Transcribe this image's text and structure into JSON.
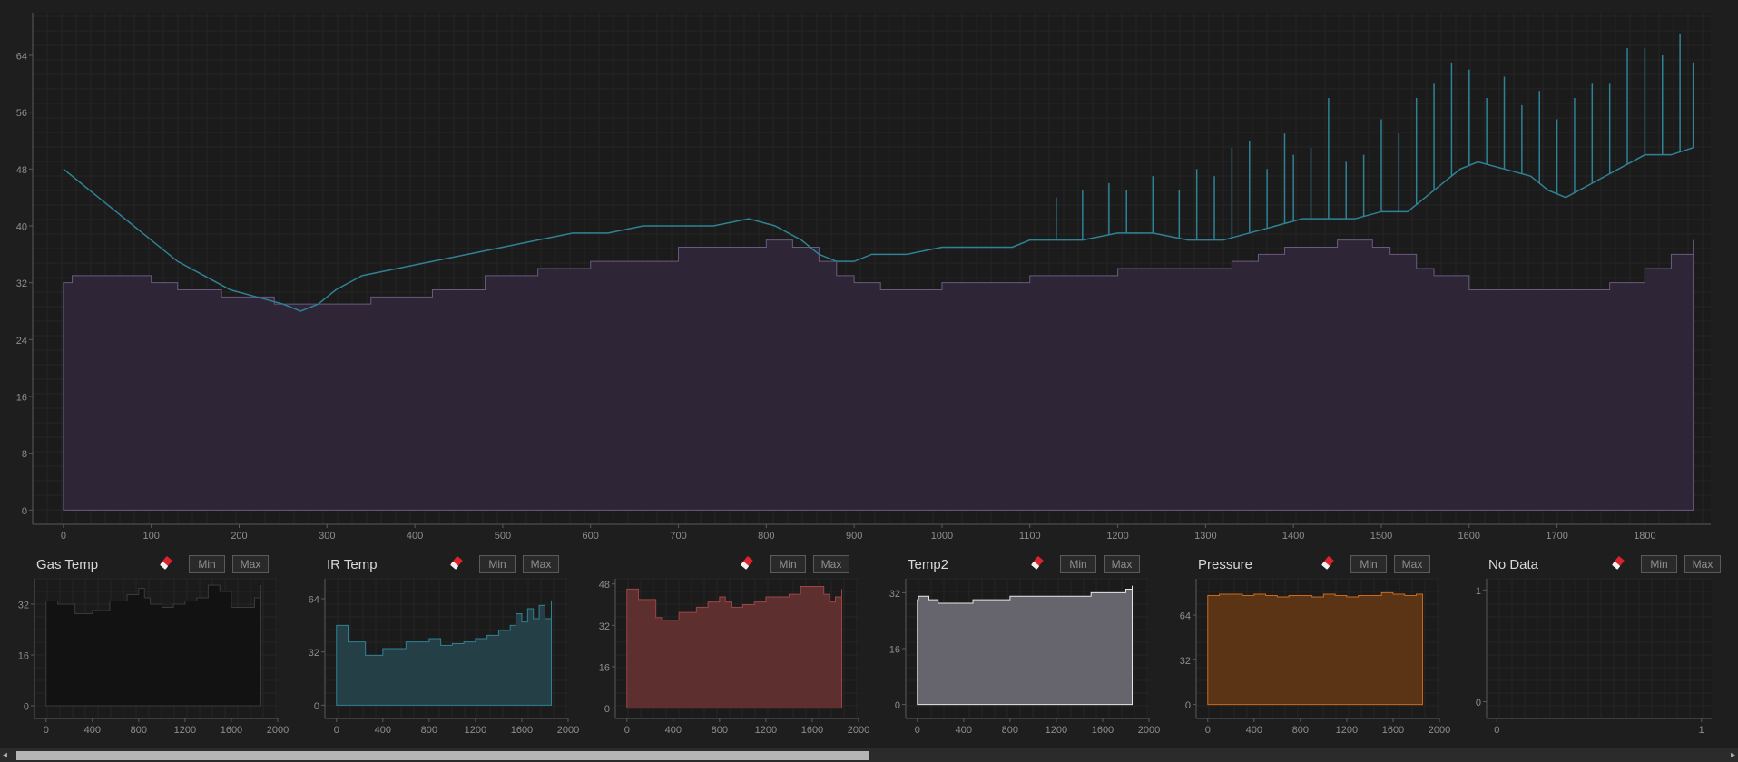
{
  "chart_data": [
    {
      "type": "area",
      "title": "",
      "xlabel": "",
      "ylabel": "",
      "xlim": [
        -35,
        1875
      ],
      "ylim": [
        -2,
        70
      ],
      "xticks": [
        0,
        100,
        200,
        300,
        400,
        500,
        600,
        700,
        800,
        900,
        1000,
        1100,
        1200,
        1300,
        1400,
        1500,
        1600,
        1700,
        1800
      ],
      "yticks": [
        0,
        8,
        16,
        24,
        32,
        40,
        48,
        56,
        64
      ],
      "grid": true,
      "series": [
        {
          "kind": "area",
          "color": "#6a5a80",
          "fill": "#2e2637",
          "x": [
            0,
            10,
            60,
            100,
            130,
            180,
            240,
            300,
            350,
            420,
            480,
            540,
            600,
            640,
            700,
            730,
            760,
            800,
            830,
            860,
            880,
            900,
            930,
            960,
            1000,
            1050,
            1100,
            1150,
            1200,
            1240,
            1270,
            1300,
            1330,
            1360,
            1390,
            1450,
            1490,
            1510,
            1540,
            1560,
            1600,
            1640,
            1690,
            1730,
            1760,
            1800,
            1830,
            1855
          ],
          "y": [
            32,
            33,
            33,
            32,
            31,
            30,
            29,
            29,
            30,
            31,
            33,
            34,
            35,
            35,
            37,
            37,
            37,
            38,
            37,
            35,
            33,
            32,
            31,
            31,
            32,
            32,
            33,
            33,
            34,
            34,
            34,
            34,
            35,
            36,
            37,
            38,
            37,
            36,
            34,
            33,
            31,
            31,
            31,
            31,
            32,
            34,
            36,
            38
          ]
        },
        {
          "kind": "line",
          "color": "#2f8294",
          "x": [
            0,
            20,
            40,
            60,
            80,
            100,
            130,
            160,
            190,
            220,
            250,
            270,
            290,
            310,
            340,
            380,
            420,
            460,
            500,
            540,
            580,
            620,
            660,
            700,
            740,
            780,
            810,
            840,
            860,
            880,
            900,
            920,
            960,
            1000,
            1040,
            1080,
            1100,
            1130,
            1160,
            1200,
            1240,
            1280,
            1320,
            1350,
            1380,
            1410,
            1440,
            1470,
            1500,
            1530,
            1560,
            1590,
            1610,
            1640,
            1670,
            1690,
            1710,
            1740,
            1770,
            1800,
            1830,
            1855
          ],
          "y": [
            48,
            46,
            44,
            42,
            40,
            38,
            35,
            33,
            31,
            30,
            29,
            28,
            29,
            31,
            33,
            34,
            35,
            36,
            37,
            38,
            39,
            39,
            40,
            40,
            40,
            41,
            40,
            38,
            36,
            35,
            35,
            36,
            36,
            37,
            37,
            37,
            38,
            38,
            38,
            39,
            39,
            38,
            38,
            39,
            40,
            41,
            41,
            41,
            42,
            42,
            45,
            48,
            49,
            48,
            47,
            45,
            44,
            46,
            48,
            50,
            50,
            51
          ]
        },
        {
          "kind": "spikes",
          "color": "#2f8294",
          "x": [
            1130,
            1160,
            1190,
            1210,
            1240,
            1270,
            1290,
            1310,
            1330,
            1350,
            1370,
            1390,
            1400,
            1420,
            1440,
            1460,
            1480,
            1500,
            1520,
            1540,
            1560,
            1580,
            1600,
            1620,
            1640,
            1660,
            1680,
            1700,
            1720,
            1740,
            1760,
            1780,
            1800,
            1820,
            1840,
            1855
          ],
          "y": [
            44,
            45,
            46,
            45,
            47,
            45,
            48,
            47,
            51,
            52,
            48,
            53,
            50,
            51,
            58,
            49,
            50,
            55,
            53,
            58,
            60,
            63,
            62,
            58,
            61,
            57,
            59,
            55,
            58,
            60,
            60,
            65,
            65,
            64,
            67,
            63
          ]
        }
      ]
    },
    {
      "type": "area",
      "title": "Gas Temp",
      "xlim": [
        -100,
        2000
      ],
      "ylim": [
        -4,
        40
      ],
      "xticks": [
        0,
        400,
        800,
        1200,
        1600,
        2000
      ],
      "yticks": [
        0,
        16,
        32
      ],
      "series": [
        {
          "color": "#3a3a3a",
          "fill": "#121212",
          "x": [
            0,
            100,
            250,
            400,
            550,
            700,
            800,
            850,
            900,
            1000,
            1100,
            1200,
            1300,
            1400,
            1500,
            1600,
            1700,
            1800,
            1855
          ],
          "y": [
            33,
            32,
            29,
            30,
            33,
            35,
            37,
            34,
            32,
            31,
            32,
            33,
            34,
            38,
            36,
            31,
            31,
            34,
            38
          ]
        }
      ]
    },
    {
      "type": "area",
      "title": "IR Temp",
      "xlim": [
        -100,
        2000
      ],
      "ylim": [
        -8,
        76
      ],
      "xticks": [
        0,
        400,
        800,
        1200,
        1600,
        2000
      ],
      "yticks": [
        0,
        32,
        64
      ],
      "series": [
        {
          "color": "#2f8294",
          "fill": "#243f46",
          "x": [
            0,
            100,
            250,
            300,
            400,
            600,
            800,
            900,
            1000,
            1100,
            1200,
            1300,
            1400,
            1500,
            1550,
            1600,
            1650,
            1700,
            1750,
            1800,
            1855
          ],
          "y": [
            48,
            38,
            30,
            30,
            34,
            38,
            40,
            36,
            37,
            38,
            40,
            42,
            45,
            48,
            55,
            50,
            58,
            52,
            60,
            52,
            63
          ]
        }
      ]
    },
    {
      "type": "area",
      "title": "",
      "xlim": [
        -100,
        2000
      ],
      "ylim": [
        -4,
        50
      ],
      "xticks": [
        0,
        400,
        800,
        1200,
        1600,
        2000
      ],
      "yticks": [
        0,
        16,
        32,
        48
      ],
      "series": [
        {
          "color": "#9c4545",
          "fill": "#5e2f2f",
          "x": [
            0,
            100,
            250,
            300,
            450,
            600,
            700,
            800,
            850,
            900,
            1000,
            1100,
            1200,
            1300,
            1400,
            1500,
            1600,
            1700,
            1750,
            1800,
            1855
          ],
          "y": [
            46,
            42,
            35,
            34,
            37,
            39,
            41,
            43,
            41,
            39,
            40,
            41,
            43,
            43,
            44,
            47,
            47,
            44,
            41,
            43,
            46
          ]
        }
      ]
    },
    {
      "type": "area",
      "title": "Temp2",
      "xlim": [
        -100,
        2000
      ],
      "ylim": [
        -4,
        36
      ],
      "xticks": [
        0,
        400,
        800,
        1200,
        1600,
        2000
      ],
      "yticks": [
        0,
        16,
        32
      ],
      "series": [
        {
          "color": "#e6e6e6",
          "fill": "#66646c",
          "x": [
            0,
            10,
            60,
            100,
            130,
            180,
            240,
            300,
            350,
            420,
            480,
            540,
            600,
            700,
            800,
            1000,
            1200,
            1400,
            1500,
            1600,
            1800,
            1855
          ],
          "y": [
            30,
            31,
            31,
            30,
            30,
            29,
            29,
            29,
            29,
            29,
            30,
            30,
            30,
            30,
            31,
            31,
            31,
            31,
            32,
            32,
            33,
            34
          ]
        }
      ]
    },
    {
      "type": "area",
      "title": "Pressure",
      "xlim": [
        -100,
        2000
      ],
      "ylim": [
        -10,
        90
      ],
      "xticks": [
        0,
        400,
        800,
        1200,
        1600,
        2000
      ],
      "yticks": [
        0,
        32,
        64
      ],
      "series": [
        {
          "color": "#c96a1c",
          "fill": "#5a3414",
          "x": [
            0,
            100,
            200,
            300,
            400,
            500,
            600,
            700,
            800,
            900,
            1000,
            1100,
            1200,
            1300,
            1400,
            1500,
            1600,
            1700,
            1800,
            1855
          ],
          "y": [
            78,
            79,
            79,
            78,
            79,
            78,
            77,
            78,
            78,
            77,
            79,
            78,
            77,
            78,
            78,
            80,
            79,
            78,
            79,
            78
          ]
        }
      ]
    },
    {
      "type": "area",
      "title": "No Data",
      "xlim": [
        -0.05,
        1.05
      ],
      "ylim": [
        -0.15,
        1.1
      ],
      "xticks": [
        0,
        1
      ],
      "yticks": [
        0,
        1
      ],
      "series": []
    }
  ],
  "buttons": {
    "min_label": "Min",
    "max_label": "Max"
  },
  "scrollbar": {
    "left_arrow": "◂",
    "right_arrow": "▸"
  },
  "colors": {
    "background": "#1e1e1e",
    "plot_background": "#1b1b1b",
    "grid": "#262626",
    "axis": "#5a5a5a",
    "tick_text": "#8e8e8e"
  }
}
